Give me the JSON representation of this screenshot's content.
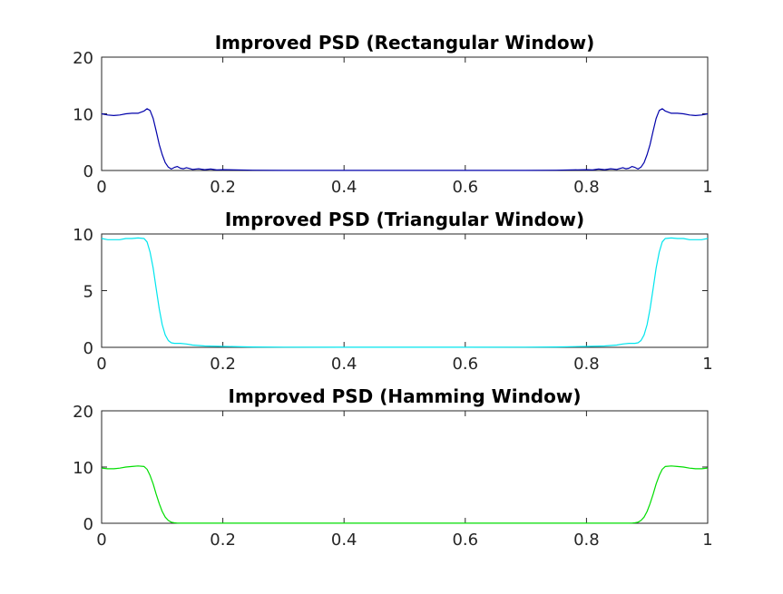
{
  "chart_data": [
    {
      "type": "line",
      "title": "Improved PSD (Rectangular Window)",
      "xlabel": "",
      "ylabel": "",
      "xlim": [
        0,
        1
      ],
      "ylim": [
        0,
        20
      ],
      "xticks": [
        0,
        0.2,
        0.4,
        0.6,
        0.8,
        1
      ],
      "xtick_labels": [
        "0",
        "0.2",
        "0.4",
        "0.6",
        "0.8",
        "1"
      ],
      "yticks": [
        0,
        10,
        20
      ],
      "ytick_labels": [
        "0",
        "10",
        "20"
      ],
      "grid": false,
      "series": [
        {
          "color": "#0000aa",
          "x": [
            0,
            0.01,
            0.02,
            0.03,
            0.04,
            0.05,
            0.06,
            0.07,
            0.075,
            0.08,
            0.085,
            0.09,
            0.095,
            0.1,
            0.105,
            0.11,
            0.115,
            0.12,
            0.125,
            0.13,
            0.135,
            0.14,
            0.145,
            0.15,
            0.16,
            0.17,
            0.18,
            0.19,
            0.2,
            0.25,
            0.3,
            0.4,
            0.5,
            0.6,
            0.7,
            0.75,
            0.8,
            0.81,
            0.82,
            0.83,
            0.84,
            0.85,
            0.855,
            0.86,
            0.865,
            0.87,
            0.875,
            0.88,
            0.885,
            0.89,
            0.895,
            0.9,
            0.905,
            0.91,
            0.915,
            0.92,
            0.925,
            0.93,
            0.94,
            0.95,
            0.96,
            0.97,
            0.98,
            0.99,
            1.0
          ],
          "y": [
            10.0,
            9.8,
            9.7,
            9.8,
            10.0,
            10.1,
            10.1,
            10.5,
            10.9,
            10.6,
            9.2,
            7.0,
            4.6,
            2.8,
            1.4,
            0.6,
            0.25,
            0.55,
            0.7,
            0.4,
            0.3,
            0.5,
            0.35,
            0.2,
            0.3,
            0.15,
            0.25,
            0.1,
            0.15,
            0.05,
            0.02,
            0.01,
            0.01,
            0.01,
            0.02,
            0.05,
            0.15,
            0.1,
            0.25,
            0.15,
            0.3,
            0.2,
            0.35,
            0.5,
            0.3,
            0.4,
            0.7,
            0.55,
            0.25,
            0.6,
            1.4,
            2.8,
            4.6,
            7.0,
            9.2,
            10.6,
            10.9,
            10.5,
            10.1,
            10.1,
            10.0,
            9.8,
            9.7,
            9.8,
            10.0
          ]
        }
      ]
    },
    {
      "type": "line",
      "title": "Improved PSD (Triangular Window)",
      "xlabel": "",
      "ylabel": "",
      "xlim": [
        0,
        1
      ],
      "ylim": [
        0,
        10
      ],
      "xticks": [
        0,
        0.2,
        0.4,
        0.6,
        0.8,
        1
      ],
      "xtick_labels": [
        "0",
        "0.2",
        "0.4",
        "0.6",
        "0.8",
        "1"
      ],
      "yticks": [
        0,
        5,
        10
      ],
      "ytick_labels": [
        "0",
        "5",
        "10"
      ],
      "grid": false,
      "series": [
        {
          "color": "#00e5ee",
          "x": [
            0,
            0.01,
            0.02,
            0.03,
            0.04,
            0.05,
            0.06,
            0.07,
            0.075,
            0.08,
            0.085,
            0.09,
            0.095,
            0.1,
            0.105,
            0.11,
            0.115,
            0.12,
            0.13,
            0.14,
            0.15,
            0.17,
            0.2,
            0.25,
            0.3,
            0.4,
            0.5,
            0.6,
            0.7,
            0.75,
            0.8,
            0.83,
            0.85,
            0.86,
            0.87,
            0.88,
            0.885,
            0.89,
            0.895,
            0.9,
            0.905,
            0.91,
            0.915,
            0.92,
            0.925,
            0.93,
            0.94,
            0.95,
            0.96,
            0.97,
            0.98,
            0.99,
            1.0
          ],
          "y": [
            9.6,
            9.5,
            9.5,
            9.5,
            9.6,
            9.6,
            9.65,
            9.6,
            9.3,
            8.4,
            7.0,
            5.2,
            3.4,
            2.0,
            1.1,
            0.6,
            0.4,
            0.35,
            0.35,
            0.3,
            0.2,
            0.12,
            0.08,
            0.03,
            0.02,
            0.01,
            0.01,
            0.01,
            0.02,
            0.03,
            0.08,
            0.12,
            0.2,
            0.3,
            0.35,
            0.35,
            0.4,
            0.6,
            1.1,
            2.0,
            3.4,
            5.2,
            7.0,
            8.4,
            9.3,
            9.6,
            9.65,
            9.6,
            9.6,
            9.5,
            9.5,
            9.5,
            9.6
          ]
        }
      ]
    },
    {
      "type": "line",
      "title": "Improved PSD (Hamming Window)",
      "xlabel": "",
      "ylabel": "",
      "xlim": [
        0,
        1
      ],
      "ylim": [
        0,
        20
      ],
      "xticks": [
        0,
        0.2,
        0.4,
        0.6,
        0.8,
        1
      ],
      "xtick_labels": [
        "0",
        "0.2",
        "0.4",
        "0.6",
        "0.8",
        "1"
      ],
      "yticks": [
        0,
        10,
        20
      ],
      "ytick_labels": [
        "0",
        "10",
        "20"
      ],
      "grid": false,
      "series": [
        {
          "color": "#00dd00",
          "x": [
            0,
            0.01,
            0.02,
            0.03,
            0.04,
            0.05,
            0.06,
            0.07,
            0.075,
            0.08,
            0.085,
            0.09,
            0.095,
            0.1,
            0.105,
            0.11,
            0.115,
            0.12,
            0.125,
            0.13,
            0.15,
            0.2,
            0.3,
            0.4,
            0.5,
            0.6,
            0.7,
            0.8,
            0.85,
            0.87,
            0.875,
            0.88,
            0.885,
            0.89,
            0.895,
            0.9,
            0.905,
            0.91,
            0.915,
            0.92,
            0.925,
            0.93,
            0.94,
            0.95,
            0.96,
            0.97,
            0.98,
            0.99,
            1.0
          ],
          "y": [
            9.8,
            9.7,
            9.7,
            9.8,
            10.0,
            10.1,
            10.2,
            10.1,
            9.6,
            8.5,
            7.0,
            5.2,
            3.5,
            2.1,
            1.1,
            0.5,
            0.2,
            0.08,
            0.04,
            0.02,
            0.01,
            0.01,
            0.01,
            0.01,
            0.01,
            0.01,
            0.01,
            0.01,
            0.01,
            0.02,
            0.04,
            0.08,
            0.2,
            0.5,
            1.1,
            2.1,
            3.5,
            5.2,
            7.0,
            8.5,
            9.6,
            10.1,
            10.2,
            10.1,
            10.0,
            9.8,
            9.7,
            9.7,
            9.8
          ]
        }
      ]
    }
  ]
}
